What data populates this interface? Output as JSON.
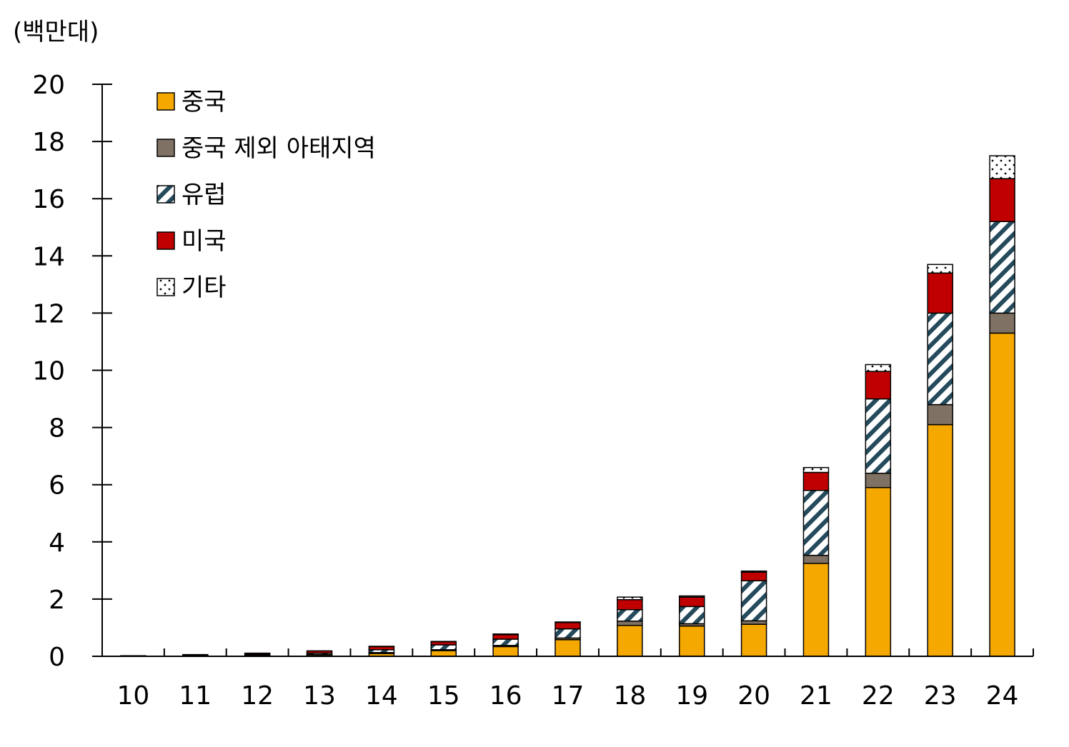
{
  "chart_data": {
    "type": "bar",
    "stacked": true,
    "unit_label": "(백만대)",
    "title": "",
    "xlabel": "",
    "ylabel": "",
    "categories": [
      "10",
      "11",
      "12",
      "13",
      "14",
      "15",
      "16",
      "17",
      "18",
      "19",
      "20",
      "21",
      "22",
      "23",
      "24"
    ],
    "ylim": [
      0,
      20
    ],
    "yticks": [
      0,
      2,
      4,
      6,
      8,
      10,
      12,
      14,
      16,
      18,
      20
    ],
    "grid": false,
    "legend_position": "top-left",
    "series": [
      {
        "name": "중국",
        "color": "#f5a800",
        "pattern": "solid",
        "values": [
          0.01,
          0.02,
          0.04,
          0.05,
          0.1,
          0.2,
          0.34,
          0.58,
          1.08,
          1.06,
          1.12,
          3.25,
          5.9,
          8.1,
          11.3
        ]
      },
      {
        "name": "중국 제외 아태지역",
        "color": "#7f7163",
        "pattern": "solid",
        "values": [
          0.0,
          0.01,
          0.01,
          0.01,
          0.03,
          0.03,
          0.04,
          0.06,
          0.15,
          0.08,
          0.12,
          0.28,
          0.5,
          0.7,
          0.7
        ]
      },
      {
        "name": "유럽",
        "color": "#244a5c",
        "pattern": "hatch",
        "values": [
          0.01,
          0.01,
          0.02,
          0.05,
          0.1,
          0.17,
          0.22,
          0.32,
          0.4,
          0.6,
          1.4,
          2.27,
          2.6,
          3.2,
          3.2
        ]
      },
      {
        "name": "미국",
        "color": "#c00000",
        "pattern": "solid",
        "values": [
          0.0,
          0.02,
          0.04,
          0.08,
          0.11,
          0.11,
          0.16,
          0.22,
          0.35,
          0.33,
          0.3,
          0.63,
          0.96,
          1.4,
          1.5
        ]
      },
      {
        "name": "기타",
        "color": "#000000",
        "pattern": "dots",
        "values": [
          0.0,
          0.0,
          0.0,
          0.0,
          0.01,
          0.01,
          0.02,
          0.02,
          0.09,
          0.04,
          0.04,
          0.17,
          0.24,
          0.3,
          0.8
        ]
      }
    ]
  }
}
